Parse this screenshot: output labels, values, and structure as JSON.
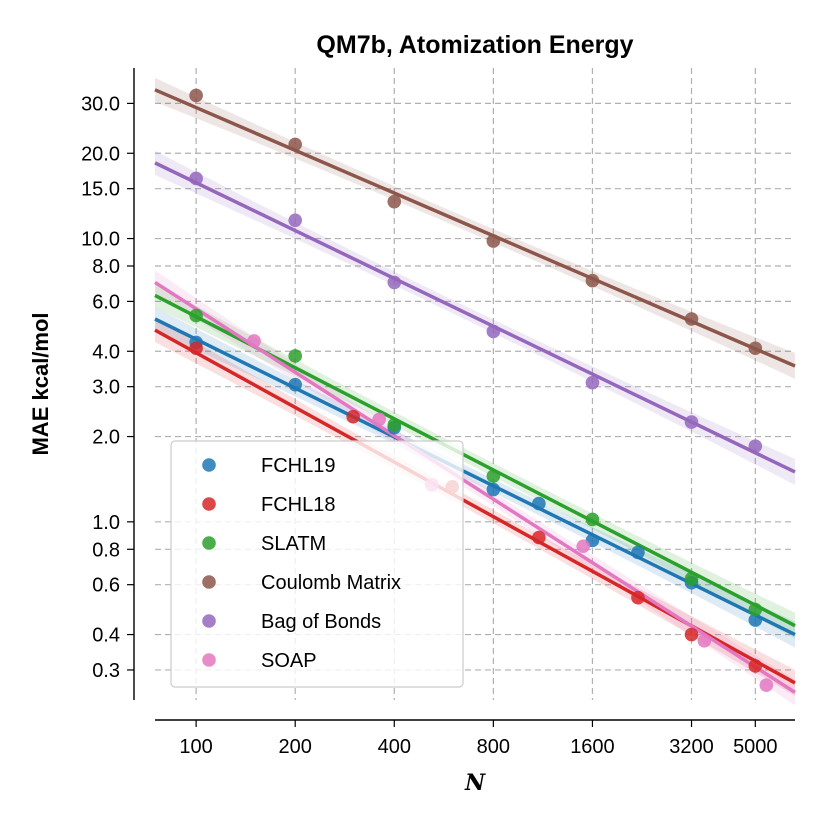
{
  "chart_data": {
    "type": "scatter",
    "title": "QM7b, Atomization Energy",
    "xlabel": "N",
    "ylabel": "MAE kcal/mol",
    "xscale": "log",
    "yscale": "log",
    "xlim": [
      75,
      6600
    ],
    "ylim": [
      0.235,
      40
    ],
    "xticks": [
      100,
      200,
      400,
      800,
      1600,
      3200,
      5000
    ],
    "xtick_labels": [
      "100",
      "200",
      "400",
      "800",
      "1600",
      "3200",
      "5000"
    ],
    "yticks": [
      0.3,
      0.4,
      0.6,
      0.8,
      1.0,
      2.0,
      3.0,
      4.0,
      6.0,
      8.0,
      10.0,
      15.0,
      20.0,
      30.0
    ],
    "ytick_labels": [
      "0.3",
      "0.4",
      "0.6",
      "0.8",
      "1.0",
      "2.0",
      "3.0",
      "4.0",
      "6.0",
      "8.0",
      "10.0",
      "15.0",
      "20.0",
      "30.0"
    ],
    "grid": true,
    "legend_position": "lower-left",
    "series": [
      {
        "name": "FCHL19",
        "color": "#1f77b4",
        "x": [
          100,
          200,
          400,
          800,
          1100,
          1600,
          2200,
          3200,
          5000
        ],
        "y": [
          4.3,
          3.05,
          2.15,
          1.3,
          1.16,
          0.86,
          0.78,
          0.61,
          0.45
        ],
        "fit_x": [
          75,
          6600
        ],
        "fit_y": [
          5.2,
          0.4
        ]
      },
      {
        "name": "FCHL18",
        "color": "#d62728",
        "x": [
          100,
          300,
          600,
          1100,
          2200,
          3200,
          5000
        ],
        "y": [
          4.1,
          2.35,
          1.33,
          0.88,
          0.54,
          0.4,
          0.31
        ],
        "fit_x": [
          75,
          6600
        ],
        "fit_y": [
          4.75,
          0.27
        ]
      },
      {
        "name": "SLATM",
        "color": "#2ca02c",
        "x": [
          100,
          200,
          400,
          800,
          1600,
          3200,
          5000
        ],
        "y": [
          5.35,
          3.85,
          2.2,
          1.45,
          1.02,
          0.63,
          0.49
        ],
        "fit_x": [
          75,
          6600
        ],
        "fit_y": [
          6.3,
          0.43
        ]
      },
      {
        "name": "Coulomb Matrix",
        "color": "#8c564b",
        "x": [
          100,
          200,
          400,
          800,
          1600,
          3200,
          5000
        ],
        "y": [
          32.0,
          21.5,
          13.5,
          9.8,
          7.1,
          5.2,
          4.1
        ],
        "fit_x": [
          75,
          6600
        ],
        "fit_y": [
          33.5,
          3.55
        ]
      },
      {
        "name": "Bag of Bonds",
        "color": "#9467bd",
        "x": [
          100,
          200,
          400,
          800,
          1600,
          3200,
          5000
        ],
        "y": [
          16.3,
          11.6,
          7.0,
          4.7,
          3.1,
          2.25,
          1.85
        ],
        "fit_x": [
          75,
          6600
        ],
        "fit_y": [
          18.5,
          1.5
        ]
      },
      {
        "name": "SOAP",
        "color": "#e377c2",
        "x": [
          150,
          360,
          520,
          1500,
          3500,
          5400
        ],
        "y": [
          4.35,
          2.3,
          1.35,
          0.82,
          0.38,
          0.265
        ],
        "fit_x": [
          75,
          6600
        ],
        "fit_y": [
          7.0,
          0.25
        ]
      }
    ]
  }
}
